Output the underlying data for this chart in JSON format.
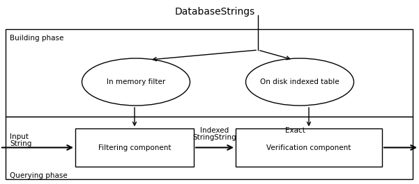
{
  "title": "DatabaseStrings",
  "building_phase_label": "Building phase",
  "querying_phase_label": "Querying phase",
  "ellipse1_label": "In memory filter",
  "ellipse2_label": "On disk indexed table",
  "box1_label": "Filtering component",
  "box2_label": "Verification component",
  "input_label1": "Input",
  "input_label2": "String",
  "indexed_label1": "Indexed",
  "indexed_label2": "StringString",
  "exact_label": "Exact",
  "bg_color": "#ffffff",
  "border_color": "#000000",
  "text_color": "#000000",
  "title_fontsize": 10,
  "label_fontsize": 7.5,
  "phase_fontsize": 7.5
}
